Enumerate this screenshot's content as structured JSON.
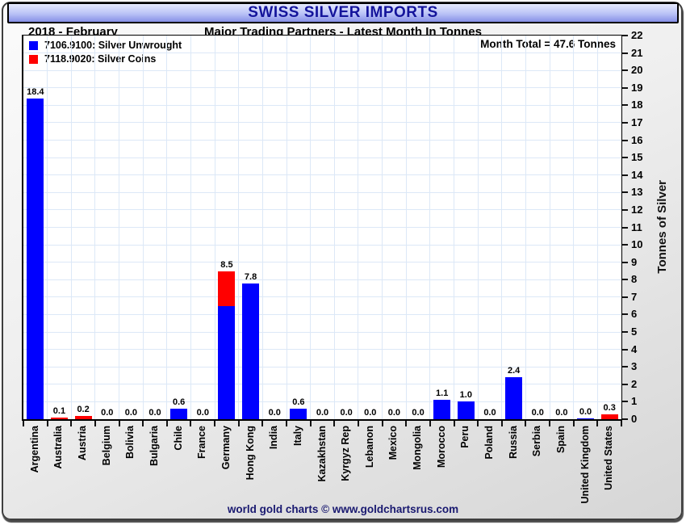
{
  "header": {
    "title": "SWISS SILVER IMPORTS",
    "period": "2018 - February",
    "subtitle": "Major Trading Partners - Latest Month In Tonnes"
  },
  "footer": {
    "text": "world gold charts © www.goldchartsrus.com"
  },
  "colors": {
    "title_text": "#14149B",
    "bar_blue": "#0000FF",
    "bar_red": "#FF0000",
    "grid": "#DCE8F7",
    "footer_text": "#191970"
  },
  "chart_data": {
    "type": "bar",
    "stacked": true,
    "title": "SWISS SILVER IMPORTS",
    "categories": [
      "Argentina",
      "Australia",
      "Austria",
      "Belgium",
      "Bolivia",
      "Bulgaria",
      "Chile",
      "France",
      "Germany",
      "Hong Kong",
      "India",
      "Italy",
      "Kazakhstan",
      "Kyrgyz Rep",
      "Lebanon",
      "Mexico",
      "Mongolia",
      "Morocco",
      "Peru",
      "Poland",
      "Russia",
      "Serbia",
      "Spain",
      "United Kingdom",
      "United States"
    ],
    "series": [
      {
        "name": "7106.9100: Silver Unwrought",
        "color": "#0000FF",
        "values": [
          18.4,
          0,
          0,
          0,
          0,
          0,
          0.6,
          0,
          6.5,
          7.8,
          0,
          0.6,
          0,
          0,
          0,
          0,
          0,
          1.1,
          1.0,
          0,
          2.4,
          0,
          0,
          0.05,
          0
        ]
      },
      {
        "name": "7118.9020: Silver Coins",
        "color": "#FF0000",
        "values": [
          0,
          0.1,
          0.2,
          0,
          0,
          0,
          0,
          0,
          2.0,
          0,
          0,
          0,
          0,
          0,
          0,
          0,
          0,
          0,
          0,
          0,
          0,
          0,
          0,
          0,
          0.3
        ]
      }
    ],
    "bar_total_labels": [
      "18.4",
      "0.1",
      "0.2",
      "0.0",
      "0.0",
      "0.0",
      "0.6",
      "0.0",
      "8.5",
      "7.8",
      "0.0",
      "0.6",
      "0.0",
      "0.0",
      "0.0",
      "0.0",
      "0.0",
      "1.1",
      "1.0",
      "0.0",
      "2.4",
      "0.0",
      "0.0",
      "0.0",
      "0.3"
    ],
    "ylabel": "Tonnes of Silver",
    "ylim": [
      0,
      22
    ],
    "ytick_step": 1,
    "y_axis_side": "right",
    "grid": true,
    "legend_position": "top-left",
    "annotation": "Month Total = 47.6 Tonnes"
  }
}
